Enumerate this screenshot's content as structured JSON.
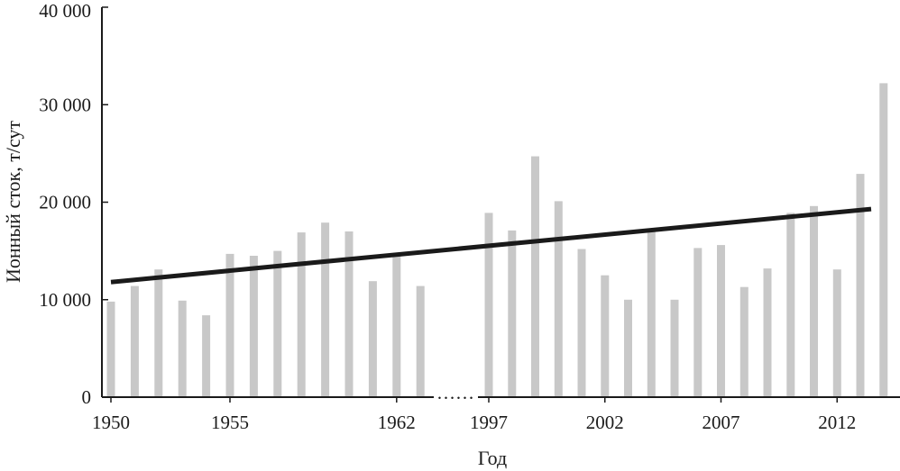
{
  "chart_data": {
    "type": "bar",
    "title": "",
    "xlabel": "Год",
    "ylabel": "Ионный сток, т/сут",
    "ylim": [
      0,
      40000
    ],
    "yticks": [
      0,
      10000,
      20000,
      30000,
      40000
    ],
    "ytick_labels": [
      "0",
      "10 000",
      "20 000",
      "30 000",
      "40 000"
    ],
    "xtick_labels": [
      "1950",
      "1955",
      "1962",
      "1997",
      "2002",
      "2007",
      "2012"
    ],
    "axis_break_label": "……",
    "grid": false,
    "legend": "none",
    "bar_color": "#c8c8c8",
    "trend_color": "#1a1a1a",
    "groups": [
      {
        "years": [
          1950,
          1951,
          1952,
          1953,
          1954,
          1955,
          1956,
          1957,
          1958,
          1959,
          1960,
          1961,
          1962,
          1963
        ],
        "values": [
          9800,
          11400,
          13100,
          9900,
          8400,
          14700,
          14500,
          15000,
          16900,
          17900,
          17000,
          11900,
          14700,
          11400
        ]
      },
      {
        "years": [
          1997,
          1998,
          1999,
          2000,
          2001,
          2002,
          2003,
          2004,
          2005,
          2006,
          2007,
          2008,
          2009,
          2010,
          2011,
          2012,
          2013,
          2014
        ],
        "values": [
          18900,
          17100,
          24700,
          20100,
          15200,
          12500,
          10000,
          17100,
          10000,
          15300,
          15600,
          11300,
          13200,
          18900,
          19600,
          13100,
          22900,
          32200
        ]
      }
    ],
    "trend": {
      "start_value": 11800,
      "end_value": 19300
    }
  }
}
